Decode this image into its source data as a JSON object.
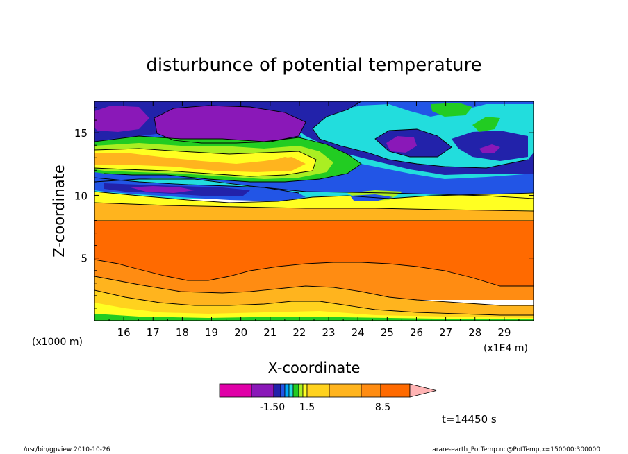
{
  "chart_data": {
    "type": "heatmap",
    "title": "disturbunce of potential temperature",
    "xlabel": "X-coordinate",
    "ylabel": "Z-coordinate",
    "x_unit": "(x1E4 m)",
    "y_unit": "(x1000 m)",
    "x_ticks": [
      "16",
      "17",
      "18",
      "19",
      "20",
      "21",
      "22",
      "23",
      "24",
      "25",
      "26",
      "27",
      "28",
      "29"
    ],
    "y_ticks": [
      "5",
      "10",
      "15"
    ],
    "xlim": [
      15.0,
      30.0
    ],
    "ylim": [
      0.0,
      17.5
    ],
    "colorbar": {
      "labels": [
        "-1.50",
        "1.5",
        "8.5"
      ],
      "colors": [
        "#e000a8",
        "#8a18b8",
        "#2222aa",
        "#2255e6",
        "#00aaff",
        "#22dddd",
        "#22cc22",
        "#aaee22",
        "#ffff22",
        "#ffd21e",
        "#ffb41e",
        "#ff8c12",
        "#ff6a00",
        "#ff2222",
        "#ff8080",
        "#ffb4b4"
      ]
    },
    "time_label": "t=14450 s",
    "footer_left": "/usr/bin/gpview   2010-10-26",
    "footer_right": "arare-earth_PotTemp.nc@PotTemp,x=150000:300000"
  }
}
